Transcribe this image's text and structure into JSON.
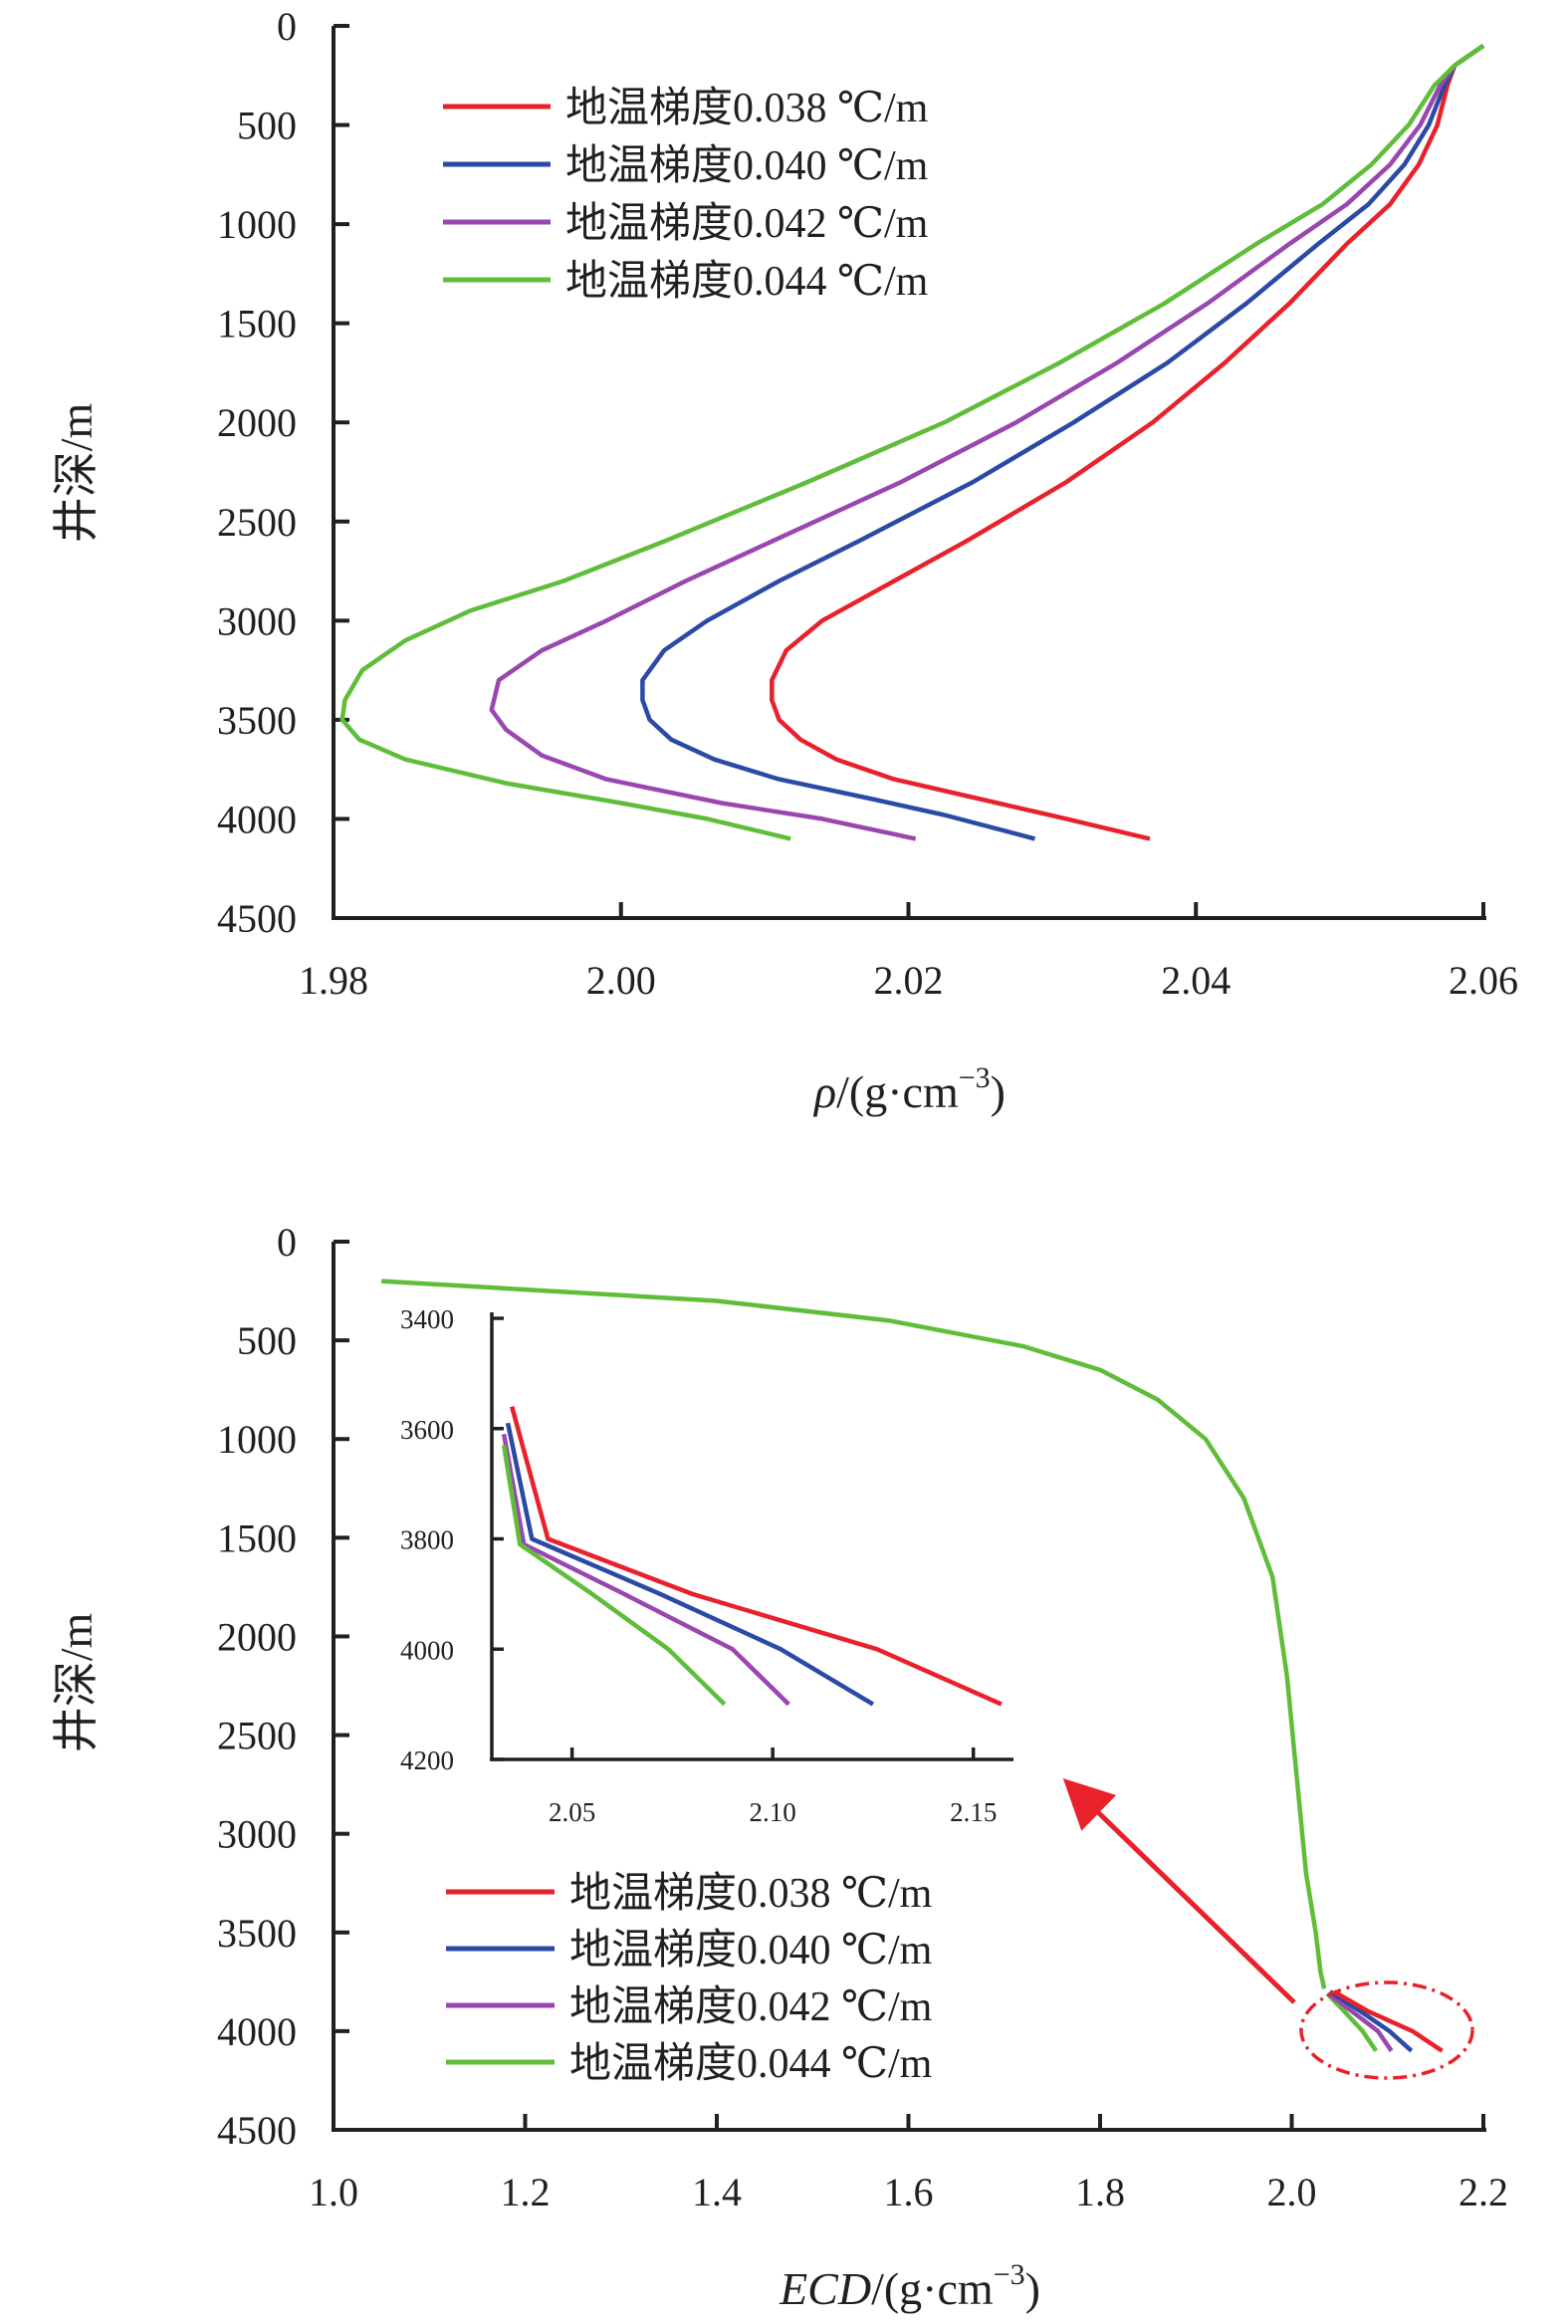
{
  "chart_data": [
    {
      "type": "line",
      "xlabel_symbol": "ρ",
      "xlabel_rest": "/(g·cm",
      "xlabel_exp": "−3",
      "xlabel_close": ")",
      "ylabel": "井深/m",
      "xlim": [
        1.98,
        2.06
      ],
      "ylim": [
        0,
        4500
      ],
      "y_inverted": true,
      "xticks": [
        "1.98",
        "2.00",
        "2.02",
        "2.04",
        "2.06"
      ],
      "xtick_values": [
        1.98,
        2.0,
        2.02,
        2.04,
        2.06
      ],
      "yticks": [
        "0",
        "500",
        "1000",
        "1500",
        "2000",
        "2500",
        "3000",
        "3500",
        "4000",
        "4500"
      ],
      "ytick_values": [
        0,
        500,
        1000,
        1500,
        2000,
        2500,
        3000,
        3500,
        4000,
        4500
      ],
      "legend_position": "top-left",
      "series": [
        {
          "name": "地温梯度0.038 ℃/m",
          "color": "#e8212b",
          "points": [
            [
              2.06,
              100
            ],
            [
              2.058,
              200
            ],
            [
              2.0575,
              300
            ],
            [
              2.0568,
              500
            ],
            [
              2.0555,
              700
            ],
            [
              2.0535,
              900
            ],
            [
              2.0505,
              1100
            ],
            [
              2.0465,
              1400
            ],
            [
              2.042,
              1700
            ],
            [
              2.037,
              2000
            ],
            [
              2.031,
              2300
            ],
            [
              2.024,
              2600
            ],
            [
              2.019,
              2800
            ],
            [
              2.014,
              3000
            ],
            [
              2.0115,
              3150
            ],
            [
              2.0105,
              3300
            ],
            [
              2.0105,
              3400
            ],
            [
              2.011,
              3500
            ],
            [
              2.0125,
              3600
            ],
            [
              2.015,
              3700
            ],
            [
              2.019,
              3800
            ],
            [
              2.025,
              3900
            ],
            [
              2.031,
              4000
            ],
            [
              2.0368,
              4100
            ]
          ]
        },
        {
          "name": "地温梯度0.040 ℃/m",
          "color": "#2a4aa6",
          "points": [
            [
              2.06,
              100
            ],
            [
              2.058,
              200
            ],
            [
              2.0573,
              300
            ],
            [
              2.0562,
              500
            ],
            [
              2.0545,
              700
            ],
            [
              2.052,
              900
            ],
            [
              2.0485,
              1100
            ],
            [
              2.0435,
              1400
            ],
            [
              2.038,
              1700
            ],
            [
              2.0315,
              2000
            ],
            [
              2.0245,
              2300
            ],
            [
              2.0165,
              2600
            ],
            [
              2.011,
              2800
            ],
            [
              2.006,
              3000
            ],
            [
              2.003,
              3150
            ],
            [
              2.0015,
              3300
            ],
            [
              2.0015,
              3400
            ],
            [
              2.002,
              3500
            ],
            [
              2.0035,
              3600
            ],
            [
              2.0065,
              3700
            ],
            [
              2.011,
              3800
            ],
            [
              2.0175,
              3900
            ],
            [
              2.0225,
              3980
            ],
            [
              2.0288,
              4100
            ]
          ]
        },
        {
          "name": "地温梯度0.042 ℃/m",
          "color": "#9a46b0",
          "points": [
            [
              2.06,
              100
            ],
            [
              2.058,
              200
            ],
            [
              2.057,
              300
            ],
            [
              2.0556,
              500
            ],
            [
              2.0535,
              700
            ],
            [
              2.0505,
              900
            ],
            [
              2.0465,
              1100
            ],
            [
              2.0408,
              1400
            ],
            [
              2.0345,
              1700
            ],
            [
              2.0275,
              2000
            ],
            [
              2.0195,
              2300
            ],
            [
              2.0105,
              2600
            ],
            [
              2.0045,
              2800
            ],
            [
              1.999,
              3000
            ],
            [
              1.9945,
              3150
            ],
            [
              1.9915,
              3300
            ],
            [
              1.991,
              3450
            ],
            [
              1.992,
              3550
            ],
            [
              1.9945,
              3680
            ],
            [
              1.999,
              3800
            ],
            [
              2.007,
              3920
            ],
            [
              2.014,
              4000
            ],
            [
              2.0205,
              4100
            ]
          ]
        },
        {
          "name": "地温梯度0.044 ℃/m",
          "color": "#5fbd3a",
          "points": [
            [
              2.06,
              100
            ],
            [
              2.058,
              200
            ],
            [
              2.0566,
              300
            ],
            [
              2.0548,
              500
            ],
            [
              2.0522,
              700
            ],
            [
              2.0488,
              900
            ],
            [
              2.0442,
              1100
            ],
            [
              2.0378,
              1400
            ],
            [
              2.0305,
              1700
            ],
            [
              2.0225,
              2000
            ],
            [
              2.013,
              2300
            ],
            [
              2.003,
              2600
            ],
            [
              1.996,
              2800
            ],
            [
              1.9895,
              2950
            ],
            [
              1.985,
              3100
            ],
            [
              1.982,
              3250
            ],
            [
              1.9808,
              3400
            ],
            [
              1.9806,
              3500
            ],
            [
              1.9818,
              3600
            ],
            [
              1.985,
              3700
            ],
            [
              1.992,
              3820
            ],
            [
              2.0,
              3920
            ],
            [
              2.006,
              4000
            ],
            [
              2.0118,
              4100
            ]
          ]
        }
      ]
    },
    {
      "type": "line",
      "xlabel": "ECD",
      "xlabel_rest": "/(g·cm",
      "xlabel_exp": "−3",
      "xlabel_close": ")",
      "ylabel": "井深/m",
      "xlim": [
        1.0,
        2.2
      ],
      "ylim": [
        0,
        4500
      ],
      "y_inverted": true,
      "xticks": [
        "1.0",
        "1.2",
        "1.4",
        "1.6",
        "1.8",
        "2.0",
        "2.2"
      ],
      "xtick_values": [
        1.0,
        1.2,
        1.4,
        1.6,
        1.8,
        2.0,
        2.2
      ],
      "yticks": [
        "0",
        "500",
        "1000",
        "1500",
        "2000",
        "2500",
        "3000",
        "3500",
        "4000",
        "4500"
      ],
      "ytick_values": [
        0,
        500,
        1000,
        1500,
        2000,
        2500,
        3000,
        3500,
        4000,
        4500
      ],
      "legend_position": "bottom-left",
      "common_curve": [
        [
          1.05,
          200
        ],
        [
          1.4,
          300
        ],
        [
          1.58,
          400
        ],
        [
          1.72,
          530
        ],
        [
          1.8,
          650
        ],
        [
          1.86,
          800
        ],
        [
          1.91,
          1000
        ],
        [
          1.95,
          1300
        ],
        [
          1.98,
          1700
        ],
        [
          1.995,
          2200
        ],
        [
          2.005,
          2700
        ],
        [
          2.015,
          3200
        ],
        [
          2.025,
          3500
        ],
        [
          2.03,
          3700
        ],
        [
          2.034,
          3785
        ]
      ],
      "series": [
        {
          "name": "地温梯度0.038 ℃/m",
          "color": "#e8212b",
          "points": [
            [
              2.035,
              3560
            ],
            [
              2.044,
              3800
            ],
            [
              2.08,
              3900
            ],
            [
              2.126,
              4000
            ],
            [
              2.157,
              4100
            ]
          ]
        },
        {
          "name": "地温梯度0.040 ℃/m",
          "color": "#2a4aa6",
          "points": [
            [
              2.034,
              3590
            ],
            [
              2.04,
              3800
            ],
            [
              2.072,
              3900
            ],
            [
              2.102,
              4000
            ],
            [
              2.125,
              4100
            ]
          ]
        },
        {
          "name": "地温梯度0.042 ℃/m",
          "color": "#9a46b0",
          "points": [
            [
              2.033,
              3610
            ],
            [
              2.038,
              3810
            ],
            [
              2.063,
              3900
            ],
            [
              2.09,
              4000
            ],
            [
              2.104,
              4100
            ]
          ]
        },
        {
          "name": "地温梯度0.044 ℃/m",
          "color": "#5fbd3a",
          "points": [
            [
              2.033,
              3630
            ],
            [
              2.037,
              3810
            ],
            [
              2.055,
              3900
            ],
            [
              2.074,
              4000
            ],
            [
              2.088,
              4100
            ]
          ]
        }
      ],
      "inset": {
        "xlim": [
          2.03,
          2.16
        ],
        "ylim": [
          3400,
          4200
        ],
        "y_inverted": true,
        "xticks": [
          "2.05",
          "2.10",
          "2.15"
        ],
        "xtick_values": [
          2.05,
          2.1,
          2.15
        ],
        "yticks": [
          "3400",
          "3600",
          "3800",
          "4000",
          "4200"
        ],
        "ytick_values": [
          3400,
          3600,
          3800,
          4000,
          4200
        ]
      }
    }
  ]
}
